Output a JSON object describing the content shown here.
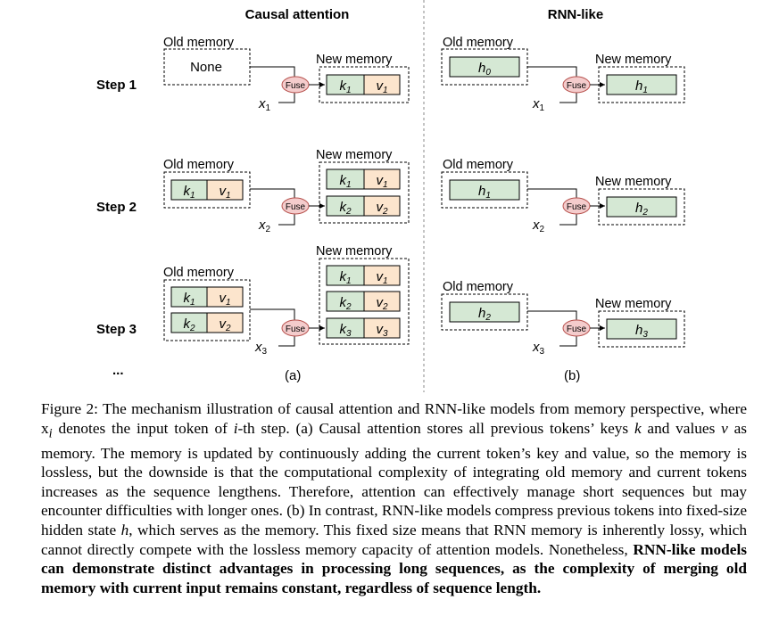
{
  "figure": {
    "panel_a": {
      "title": "Causal attention",
      "label": "(a)",
      "steps": [
        {
          "step_label": "Step 1",
          "old_memory_label": "Old memory",
          "old_content": "None",
          "new_memory_label": "New memory",
          "input": "x1"
        },
        {
          "step_label": "Step 2",
          "old_memory_label": "Old memory",
          "new_memory_label": "New memory",
          "input": "x2"
        },
        {
          "step_label": "Step 3",
          "old_memory_label": "Old memory",
          "new_memory_label": "New memory",
          "input": "x3"
        }
      ],
      "ellipsis": "...",
      "fuse_label": "Fuse"
    },
    "panel_b": {
      "title": "RNN-like",
      "label": "(b)",
      "steps": [
        {
          "old_memory_label": "Old memory",
          "new_memory_label": "New memory",
          "old_state": "h0",
          "new_state": "h1",
          "input": "x1"
        },
        {
          "old_memory_label": "Old memory",
          "new_memory_label": "New memory",
          "old_state": "h1",
          "new_state": "h2",
          "input": "x2"
        },
        {
          "old_memory_label": "Old memory",
          "new_memory_label": "New memory",
          "old_state": "h2",
          "new_state": "h3",
          "input": "x3"
        }
      ],
      "fuse_label": "Fuse"
    },
    "colors": {
      "key_fill": "#d5e8d4",
      "value_fill": "#fce5cd",
      "fuse_fill": "#f4cccc",
      "fuse_stroke": "#b85450"
    }
  },
  "caption": {
    "part1": "Figure 2: The mechanism illustration of causal attention and RNN-like models from memory perspective, where x",
    "part1_sub": "i",
    "part2": " denotes the input token of ",
    "part2_i": "i",
    "part3": "-th step. (a) Causal attention stores all previous tokens’ keys ",
    "k": "k",
    "part4": " and values ",
    "v": "v",
    "part5": " as memory. The memory is updated by continuously adding the current token’s key and value, so the memory is lossless, but the downside is that the computational complexity of integrating old memory and current tokens increases as the sequence lengthens. Therefore, attention can effectively manage short sequences but may encounter difficulties with longer ones. (b) In contrast, RNN-like models compress previous tokens into fixed-size hidden state ",
    "h": "h",
    "part6": ", which serves as the memory. This fixed size means that RNN memory is inherently lossy, which cannot directly compete with the lossless memory capacity of attention models. Nonetheless, ",
    "bold": "RNN-like models can demonstrate distinct advantages in processing long sequences, as the complexity of merging old memory with current input remains constant, regardless of sequence length."
  }
}
